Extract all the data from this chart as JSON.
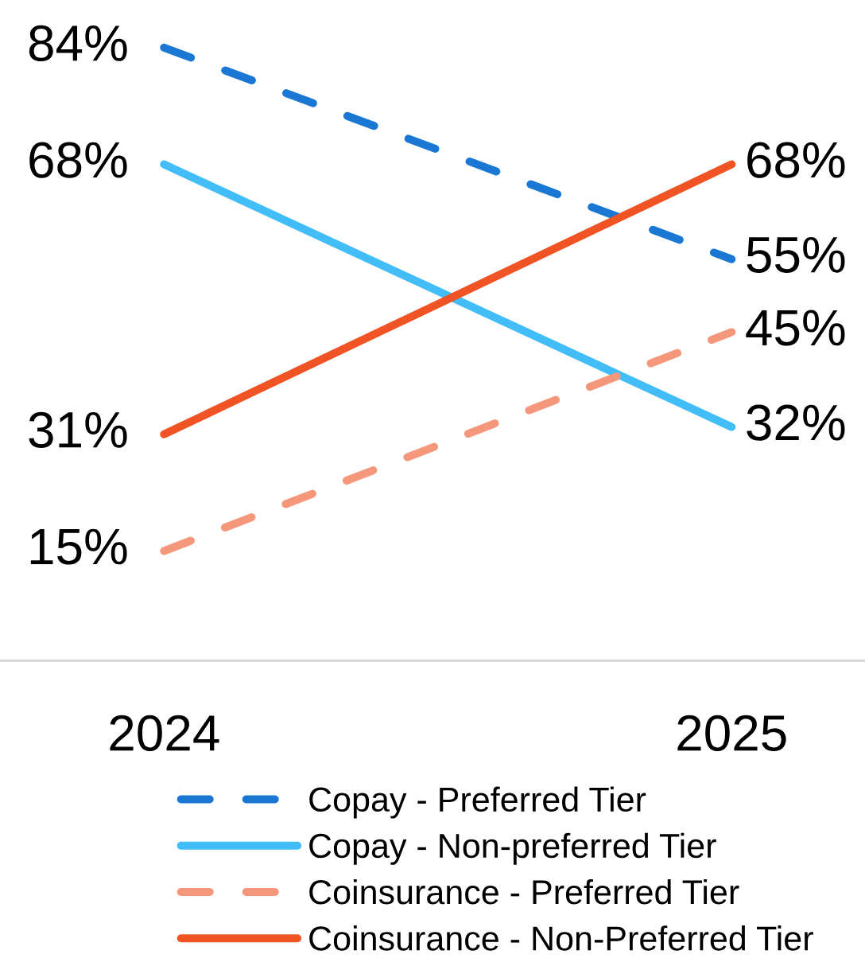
{
  "chart_data": {
    "type": "line",
    "categories": [
      "2024",
      "2025"
    ],
    "tick_labels": "x",
    "grid": false,
    "marker": "none",
    "legend": "bottom",
    "series": [
      {
        "name": "Copay - Preferred Tier",
        "color": "#1a78d4",
        "values": [
          84,
          55
        ],
        "value_labels": [
          "84%",
          "55%"
        ],
        "line_style": "dashed"
      },
      {
        "name": "Copay - Non-preferred Tier",
        "color": "#42bdf8",
        "values": [
          68,
          32
        ],
        "value_labels": [
          "68%",
          "32%"
        ],
        "line_style": "solid"
      },
      {
        "name": "Coinsurance - Preferred Tier",
        "color": "#f5977a",
        "values": [
          15,
          45
        ],
        "value_labels": [
          "15%",
          "45%"
        ],
        "line_style": "dashed"
      },
      {
        "name": "Coinsurance - Non-Preferred Tier",
        "color": "#f05424",
        "values": [
          31,
          68
        ],
        "value_labels": [
          "31%",
          "68%"
        ],
        "line_style": "solid"
      }
    ]
  }
}
